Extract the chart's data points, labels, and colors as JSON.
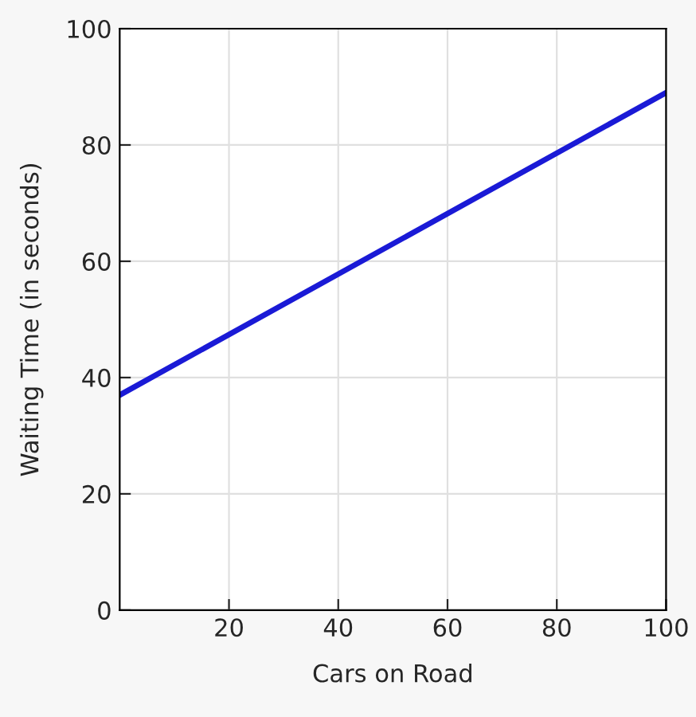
{
  "chart_data": {
    "type": "line",
    "xlabel": "Cars on Road",
    "ylabel": "Waiting Time (in seconds)",
    "x": [
      0,
      100
    ],
    "series": [
      {
        "color": "#1a1ad6",
        "values": [
          37,
          89
        ]
      }
    ],
    "xlim": [
      0,
      100
    ],
    "xticks": [
      20,
      40,
      60,
      80,
      100
    ],
    "ylim": [
      0,
      100
    ],
    "yticks": [
      0,
      20,
      40,
      60,
      80,
      100
    ],
    "grid": true,
    "line_style": "solid"
  }
}
